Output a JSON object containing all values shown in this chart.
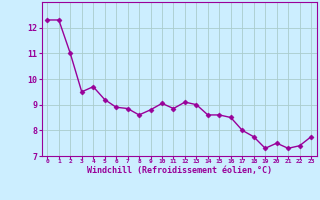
{
  "x": [
    0,
    1,
    2,
    3,
    4,
    5,
    6,
    7,
    8,
    9,
    10,
    11,
    12,
    13,
    14,
    15,
    16,
    17,
    18,
    19,
    20,
    21,
    22,
    23
  ],
  "y": [
    12.3,
    12.3,
    11.0,
    9.5,
    9.7,
    9.2,
    8.9,
    8.85,
    8.6,
    8.8,
    9.05,
    8.85,
    9.1,
    9.0,
    8.6,
    8.6,
    8.5,
    8.0,
    7.75,
    7.3,
    7.5,
    7.3,
    7.4,
    7.75
  ],
  "line_color": "#990099",
  "marker_color": "#990099",
  "bg_color": "#cceeff",
  "grid_color": "#aacccc",
  "xlabel": "Windchill (Refroidissement éolien,°C)",
  "xlabel_color": "#990099",
  "tick_color": "#990099",
  "ylim": [
    7,
    13
  ],
  "xlim": [
    -0.5,
    23.5
  ],
  "yticks": [
    7,
    8,
    9,
    10,
    11,
    12
  ],
  "xticks": [
    0,
    1,
    2,
    3,
    4,
    5,
    6,
    7,
    8,
    9,
    10,
    11,
    12,
    13,
    14,
    15,
    16,
    17,
    18,
    19,
    20,
    21,
    22,
    23
  ],
  "spine_color": "#990099",
  "marker_size": 2.5,
  "line_width": 1.0
}
